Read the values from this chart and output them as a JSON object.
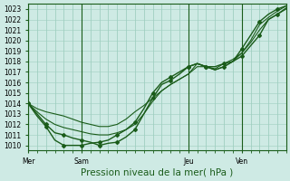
{
  "xlabel": "Pression niveau de la mer( hPa )",
  "bg_color": "#ceeae4",
  "line_color": "#1a5c1a",
  "grid_color": "#9ecfbf",
  "ylim": [
    1009.5,
    1023.5
  ],
  "yticks": [
    1010,
    1011,
    1012,
    1013,
    1014,
    1015,
    1016,
    1017,
    1018,
    1019,
    1020,
    1021,
    1022,
    1023
  ],
  "xtick_labels": [
    "Mer",
    "Sam",
    "Jeu",
    "Ven"
  ],
  "xtick_positions": [
    0,
    6,
    18,
    24
  ],
  "n_points": 30,
  "series": [
    {
      "y": [
        1014.0,
        1013.0,
        1012.0,
        1011.2,
        1011.0,
        1010.7,
        1010.5,
        1010.3,
        1010.0,
        1010.2,
        1010.3,
        1010.8,
        1011.5,
        1013.0,
        1014.5,
        1015.8,
        1016.2,
        1016.8,
        1017.5,
        1017.8,
        1017.5,
        1017.5,
        1017.8,
        1018.0,
        1018.5,
        1019.5,
        1020.5,
        1022.0,
        1022.5,
        1023.1
      ],
      "marker": true,
      "lw": 1.0
    },
    {
      "y": [
        1014.0,
        1013.2,
        1012.5,
        1012.0,
        1011.7,
        1011.5,
        1011.3,
        1011.1,
        1011.0,
        1011.0,
        1011.2,
        1011.5,
        1012.0,
        1013.0,
        1014.2,
        1015.2,
        1015.8,
        1016.3,
        1016.8,
        1017.5,
        1017.5,
        1017.3,
        1017.8,
        1018.2,
        1018.8,
        1019.8,
        1021.0,
        1022.0,
        1022.5,
        1023.0
      ],
      "marker": false,
      "lw": 0.8
    },
    {
      "y": [
        1014.0,
        1013.5,
        1013.2,
        1013.0,
        1012.8,
        1012.5,
        1012.2,
        1012.0,
        1011.8,
        1011.8,
        1012.0,
        1012.5,
        1013.2,
        1013.8,
        1014.5,
        1015.2,
        1015.8,
        1016.3,
        1016.8,
        1017.8,
        1017.5,
        1017.2,
        1017.5,
        1018.0,
        1018.8,
        1020.0,
        1021.5,
        1022.2,
        1022.8,
        1023.3
      ],
      "marker": false,
      "lw": 0.8
    },
    {
      "y": [
        1014.0,
        1012.8,
        1011.8,
        1010.5,
        1010.0,
        1010.0,
        1010.0,
        1010.2,
        1010.3,
        1010.5,
        1011.0,
        1011.5,
        1012.2,
        1013.5,
        1015.0,
        1016.0,
        1016.5,
        1017.0,
        1017.5,
        1017.8,
        1017.5,
        1017.2,
        1017.5,
        1018.0,
        1019.2,
        1020.5,
        1021.8,
        1022.5,
        1023.0,
        1023.3
      ],
      "marker": true,
      "lw": 1.0
    }
  ],
  "marker": "D",
  "markersize": 2.0,
  "tick_fontsize": 5.5,
  "label_fontsize": 7.5
}
